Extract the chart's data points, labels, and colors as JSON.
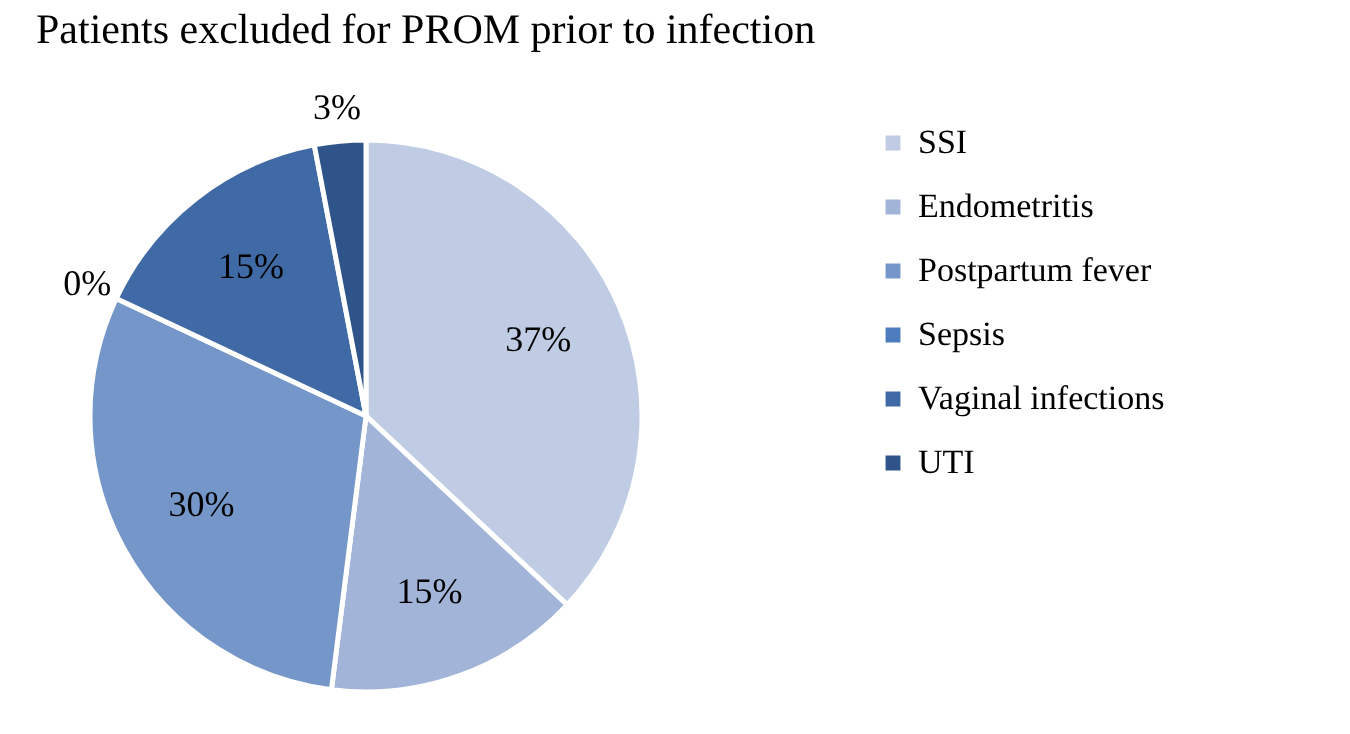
{
  "chart_data": {
    "type": "pie",
    "title": "Patients excluded for PROM prior to infection",
    "categories": [
      "SSI",
      "Endometritis",
      "Postpartum fever",
      "Sepsis",
      "Vaginal infections",
      "UTI"
    ],
    "values": [
      37,
      15,
      30,
      0,
      15,
      3
    ],
    "colors": [
      "#c0cce3",
      "#a2b4d8",
      "#7596c8",
      "#4e7dbf",
      "#3f6aa5",
      "#2f548a"
    ],
    "value_labels": [
      "37%",
      "15%",
      "30%",
      "0%",
      "15%",
      "3%"
    ],
    "legend": "right"
  }
}
